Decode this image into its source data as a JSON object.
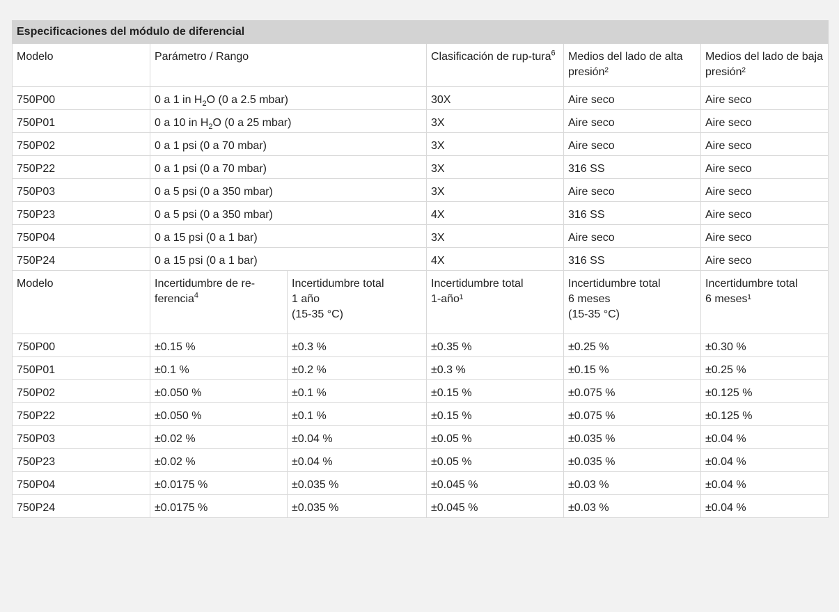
{
  "table": {
    "caption": "Especificaciones del módulo de diferencial",
    "header1": {
      "model": "Modelo",
      "range": "Parámetro / Rango",
      "burst": "Clasificación de rup-tura",
      "burst_sup": "6",
      "high": "Medios del lado de alta presión²",
      "low": "Medios del lado de baja presión²"
    },
    "rows1": [
      {
        "model": "750P00",
        "range_pre": "0 a 1 in H",
        "range_sub": "2",
        "range_post": "O (0 a 2.5 mbar)",
        "burst": "30X",
        "high": "Aire seco",
        "low": "Aire seco"
      },
      {
        "model": "750P01",
        "range_pre": "0 a 10 in H",
        "range_sub": "2",
        "range_post": "O (0 a 25 mbar)",
        "burst": "3X",
        "high": "Aire seco",
        "low": "Aire seco"
      },
      {
        "model": "750P02",
        "range_pre": "0 a 1 psi (0 a 70 mbar)",
        "range_sub": "",
        "range_post": "",
        "burst": "3X",
        "high": "Aire seco",
        "low": "Aire seco"
      },
      {
        "model": "750P22",
        "range_pre": "0 a 1 psi (0 a 70 mbar)",
        "range_sub": "",
        "range_post": "",
        "burst": "3X",
        "high": "316 SS",
        "low": "Aire seco"
      },
      {
        "model": "750P03",
        "range_pre": "0 a 5 psi (0 a 350 mbar)",
        "range_sub": "",
        "range_post": "",
        "burst": "3X",
        "high": "Aire seco",
        "low": "Aire seco"
      },
      {
        "model": "750P23",
        "range_pre": "0 a 5 psi (0 a 350 mbar)",
        "range_sub": "",
        "range_post": "",
        "burst": "4X",
        "high": "316 SS",
        "low": "Aire seco"
      },
      {
        "model": "750P04",
        "range_pre": "0 a 15 psi (0 a 1 bar)",
        "range_sub": "",
        "range_post": "",
        "burst": "3X",
        "high": "Aire seco",
        "low": "Aire seco"
      },
      {
        "model": "750P24",
        "range_pre": "0 a 15 psi (0 a 1 bar)",
        "range_sub": "",
        "range_post": "",
        "burst": "4X",
        "high": "316 SS",
        "low": "Aire seco"
      }
    ],
    "header2": {
      "model": "Modelo",
      "ref": "Incertidumbre de re-ferencia",
      "ref_sup": "4",
      "total1y": "Incertidumbre total\n1 año\n(15-35 °C)",
      "total1y_b": "Incertidumbre total\n1-año¹",
      "total6m": "Incertidumbre total\n6 meses\n(15-35 °C)",
      "total6m_b": "Incertidumbre total\n6 meses¹"
    },
    "rows2": [
      {
        "model": "750P00",
        "ref": "±0.15 %",
        "t1y": "±0.3 %",
        "t1y_b": "±0.35 %",
        "t6m": "±0.25 %",
        "t6m_b": "±0.30 %"
      },
      {
        "model": "750P01",
        "ref": "±0.1 %",
        "t1y": "±0.2 %",
        "t1y_b": "±0.3 %",
        "t6m": "±0.15 %",
        "t6m_b": "±0.25 %"
      },
      {
        "model": "750P02",
        "ref": "±0.050 %",
        "t1y": "±0.1 %",
        "t1y_b": "±0.15 %",
        "t6m": "±0.075 %",
        "t6m_b": "±0.125 %"
      },
      {
        "model": "750P22",
        "ref": "±0.050 %",
        "t1y": "±0.1 %",
        "t1y_b": "±0.15 %",
        "t6m": "±0.075 %",
        "t6m_b": "±0.125 %"
      },
      {
        "model": "750P03",
        "ref": "±0.02 %",
        "t1y": "±0.04 %",
        "t1y_b": "±0.05 %",
        "t6m": "±0.035 %",
        "t6m_b": "±0.04 %"
      },
      {
        "model": "750P23",
        "ref": "±0.02 %",
        "t1y": "±0.04 %",
        "t1y_b": "±0.05 %",
        "t6m": "±0.035 %",
        "t6m_b": "±0.04 %"
      },
      {
        "model": "750P04",
        "ref": "±0.0175 %",
        "t1y": "±0.035 %",
        "t1y_b": "±0.045 %",
        "t6m": "±0.03 %",
        "t6m_b": "±0.04 %"
      },
      {
        "model": "750P24",
        "ref": "±0.0175 %",
        "t1y": "±0.035 %",
        "t1y_b": "±0.045 %",
        "t6m": "±0.03 %",
        "t6m_b": "±0.04 %"
      }
    ]
  }
}
